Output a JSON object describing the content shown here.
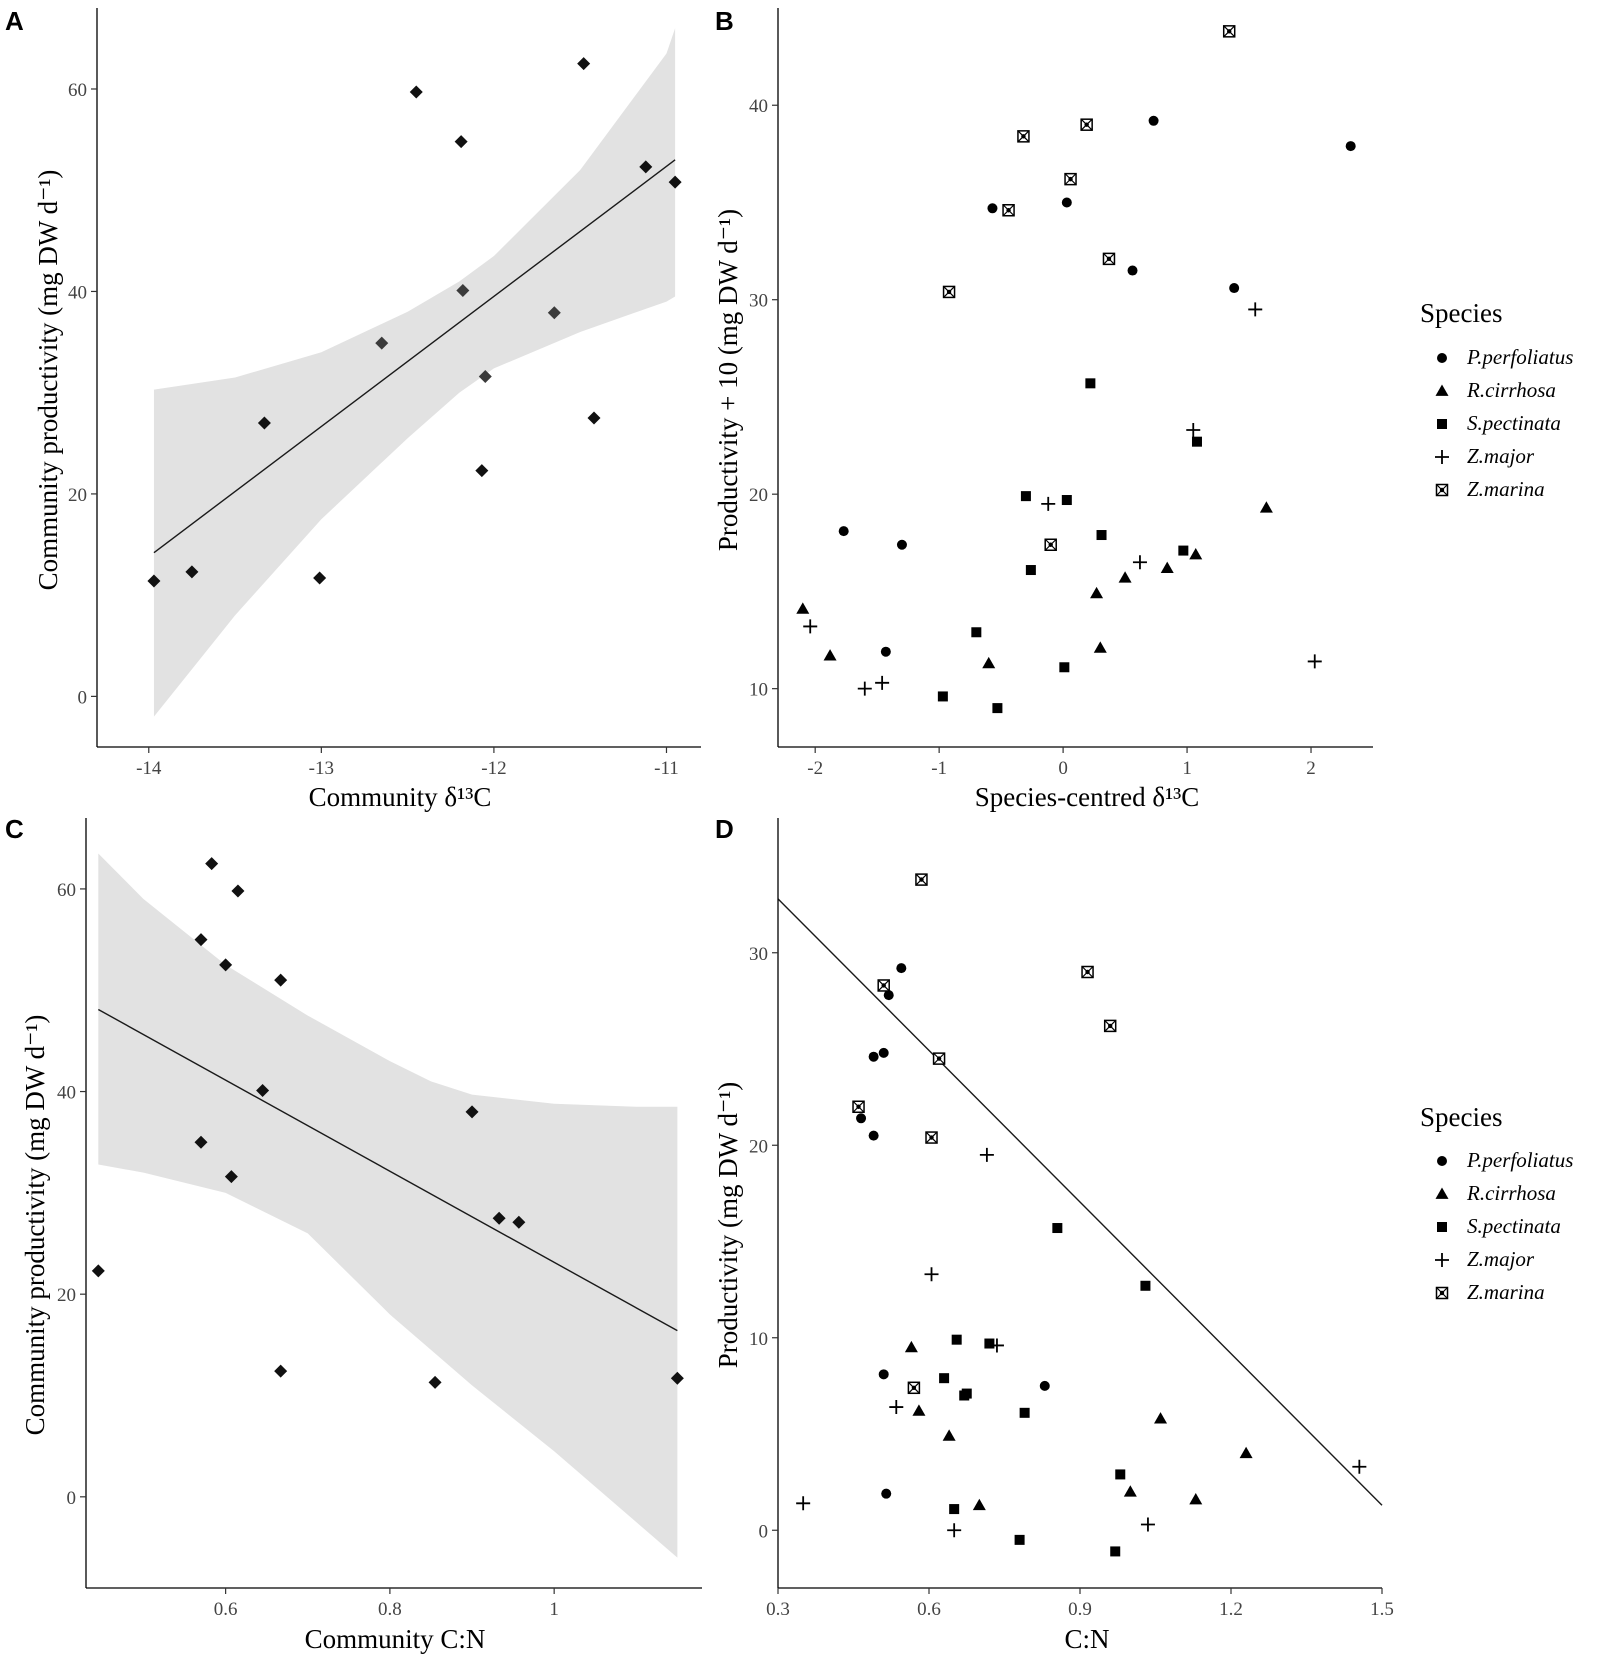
{
  "chart_data": [
    {
      "panel": "A",
      "type": "scatter",
      "xlabel": "Community δ¹³C",
      "ylabel": "Community productivity (mg DW d⁻¹)",
      "xlim": [
        -14.3,
        -10.8
      ],
      "ylim": [
        -5,
        68
      ],
      "xticks": [
        -14,
        -13,
        -12,
        -11
      ],
      "yticks": [
        0,
        20,
        40,
        60
      ],
      "points": [
        {
          "x": -13.97,
          "y": 11.4
        },
        {
          "x": -13.75,
          "y": 12.3
        },
        {
          "x": -13.33,
          "y": 27.0
        },
        {
          "x": -13.01,
          "y": 11.7
        },
        {
          "x": -12.65,
          "y": 34.9
        },
        {
          "x": -12.45,
          "y": 59.7
        },
        {
          "x": -12.19,
          "y": 54.8
        },
        {
          "x": -12.18,
          "y": 40.1
        },
        {
          "x": -12.05,
          "y": 31.6
        },
        {
          "x": -12.07,
          "y": 22.3
        },
        {
          "x": -11.65,
          "y": 37.9
        },
        {
          "x": -11.48,
          "y": 62.5
        },
        {
          "x": -11.42,
          "y": 27.5
        },
        {
          "x": -11.12,
          "y": 52.3
        },
        {
          "x": -10.95,
          "y": 50.8
        }
      ],
      "fit": {
        "x": [
          -13.97,
          -10.95
        ],
        "y": [
          14.2,
          53.0
        ]
      },
      "ribbon": {
        "x": [
          -13.97,
          -13.5,
          -13.0,
          -12.5,
          -12.2,
          -12.0,
          -11.5,
          -11.0,
          -10.95
        ],
        "lower": [
          -2.0,
          8.0,
          17.5,
          25.5,
          30.0,
          32.4,
          36.0,
          39.0,
          39.5
        ],
        "upper": [
          30.3,
          31.5,
          34.0,
          38.0,
          41.0,
          43.5,
          52.0,
          63.5,
          66.0
        ]
      }
    },
    {
      "panel": "B",
      "type": "scatter",
      "xlabel": "Species-centred δ¹³C",
      "ylabel": "Productivity + 10 (mg DW d⁻¹)",
      "xlim": [
        -2.3,
        2.5
      ],
      "ylim": [
        7,
        45
      ],
      "xticks": [
        -2,
        -1,
        0,
        1,
        2
      ],
      "yticks": [
        10,
        20,
        30,
        40
      ],
      "legend": {
        "title": "Species",
        "entries": [
          "P.perfoliatus",
          "R.cirrhosa",
          "S.pectinata",
          "Z.major",
          "Z.marina"
        ]
      },
      "series": [
        {
          "name": "P.perfoliatus",
          "shape": "circle",
          "x": [
            -1.77,
            -1.3,
            -1.43,
            -0.57,
            0.03,
            0.56,
            0.73,
            1.38,
            2.32
          ],
          "y": [
            18.1,
            17.4,
            11.9,
            34.7,
            35.0,
            31.5,
            39.2,
            30.6,
            37.9
          ]
        },
        {
          "name": "R.cirrhosa",
          "shape": "triangle",
          "x": [
            -2.1,
            -1.88,
            -0.6,
            0.27,
            0.3,
            0.5,
            0.84,
            1.07,
            1.64
          ],
          "y": [
            14.1,
            11.7,
            11.3,
            14.9,
            12.1,
            15.7,
            16.2,
            16.9,
            19.3
          ]
        },
        {
          "name": "S.pectinata",
          "shape": "square",
          "x": [
            -0.97,
            -0.53,
            -0.7,
            -0.3,
            -0.26,
            0.03,
            0.01,
            0.22,
            0.31,
            0.97,
            1.08
          ],
          "y": [
            9.6,
            9.0,
            12.9,
            19.9,
            16.1,
            19.7,
            11.1,
            25.7,
            17.9,
            17.1,
            22.7
          ]
        },
        {
          "name": "Z.major",
          "shape": "plus",
          "x": [
            -2.04,
            -1.6,
            -1.46,
            -0.12,
            0.62,
            1.05,
            1.55,
            2.03
          ],
          "y": [
            13.2,
            10.0,
            10.3,
            19.5,
            16.5,
            23.3,
            29.5,
            11.4
          ]
        },
        {
          "name": "Z.marina",
          "shape": "crossbox",
          "x": [
            -0.92,
            -0.44,
            -0.32,
            -0.1,
            0.06,
            0.19,
            0.37,
            1.34
          ],
          "y": [
            30.4,
            34.6,
            38.4,
            17.4,
            36.2,
            39.0,
            32.1,
            43.8
          ]
        }
      ]
    },
    {
      "panel": "C",
      "type": "scatter",
      "xlabel": "Community C:N",
      "ylabel": "Community productivity (mg DW d⁻¹)",
      "xlim": [
        0.43,
        1.18
      ],
      "ylim": [
        -9,
        67
      ],
      "xticks": [
        0.6,
        0.8,
        1.0
      ],
      "yticks": [
        0,
        20,
        40,
        60
      ],
      "points": [
        {
          "x": 0.445,
          "y": 22.3
        },
        {
          "x": 0.57,
          "y": 55.0
        },
        {
          "x": 0.57,
          "y": 35.0
        },
        {
          "x": 0.583,
          "y": 62.5
        },
        {
          "x": 0.6,
          "y": 52.5
        },
        {
          "x": 0.607,
          "y": 31.6
        },
        {
          "x": 0.615,
          "y": 59.8
        },
        {
          "x": 0.645,
          "y": 40.1
        },
        {
          "x": 0.667,
          "y": 51.0
        },
        {
          "x": 0.667,
          "y": 12.4
        },
        {
          "x": 0.855,
          "y": 11.3
        },
        {
          "x": 0.9,
          "y": 38.0
        },
        {
          "x": 0.933,
          "y": 27.5
        },
        {
          "x": 0.957,
          "y": 27.1
        },
        {
          "x": 1.15,
          "y": 11.7
        }
      ],
      "fit": {
        "x": [
          0.445,
          1.15
        ],
        "y": [
          48.1,
          16.4
        ]
      },
      "ribbon": {
        "x": [
          0.445,
          0.5,
          0.6,
          0.7,
          0.8,
          0.85,
          0.9,
          1.0,
          1.1,
          1.15
        ],
        "lower": [
          32.8,
          32.0,
          30.0,
          26.0,
          18.0,
          14.5,
          11.0,
          4.5,
          -2.5,
          -6.0
        ],
        "upper": [
          63.5,
          59.0,
          52.5,
          47.5,
          43.0,
          41.0,
          39.7,
          38.8,
          38.5,
          38.5
        ]
      }
    },
    {
      "panel": "D",
      "type": "scatter",
      "xlabel": "C:N",
      "ylabel": "Productivity (mg DW d⁻¹)",
      "xlim": [
        0.3,
        1.5
      ],
      "ylim": [
        -3,
        37
      ],
      "xticks": [
        0.3,
        0.6,
        0.9,
        1.2,
        1.5
      ],
      "xtick_labels": [
        "0.3",
        "0.6",
        "0.9",
        "1.2",
        "1.5"
      ],
      "yticks": [
        0,
        10,
        20,
        30
      ],
      "legend": {
        "title": "Species",
        "entries": [
          "P.perfoliatus",
          "R.cirrhosa",
          "S.pectinata",
          "Z.major",
          "Z.marina"
        ]
      },
      "series": [
        {
          "name": "P.perfoliatus",
          "shape": "circle",
          "x": [
            0.465,
            0.49,
            0.49,
            0.51,
            0.51,
            0.515,
            0.52,
            0.545,
            0.83
          ],
          "y": [
            21.4,
            24.6,
            20.5,
            24.8,
            8.1,
            1.9,
            27.8,
            29.2,
            7.5
          ]
        },
        {
          "name": "R.cirrhosa",
          "shape": "triangle",
          "x": [
            0.565,
            0.58,
            0.64,
            0.7,
            1.0,
            1.06,
            1.13,
            1.23
          ],
          "y": [
            9.5,
            6.2,
            4.9,
            1.3,
            2.0,
            5.8,
            1.6,
            4.0
          ]
        },
        {
          "name": "S.pectinata",
          "shape": "square",
          "x": [
            0.63,
            0.65,
            0.655,
            0.67,
            0.675,
            0.72,
            0.78,
            0.79,
            0.855,
            0.97,
            0.98,
            1.03
          ],
          "y": [
            7.9,
            1.1,
            9.9,
            7.0,
            7.1,
            9.7,
            -0.5,
            6.1,
            15.7,
            -1.1,
            2.9,
            12.7
          ]
        },
        {
          "name": "Z.major",
          "shape": "plus",
          "x": [
            0.35,
            0.535,
            0.605,
            0.65,
            0.715,
            0.735,
            1.035,
            1.455
          ],
          "y": [
            1.4,
            6.4,
            13.3,
            0.0,
            19.5,
            9.6,
            0.3,
            3.3
          ]
        },
        {
          "name": "Z.marina",
          "shape": "crossbox",
          "x": [
            0.46,
            0.57,
            0.51,
            0.585,
            0.605,
            0.62,
            0.915,
            0.96
          ],
          "y": [
            22.0,
            7.4,
            28.3,
            33.8,
            20.4,
            24.5,
            29.0,
            26.2
          ]
        }
      ],
      "fit": {
        "x": [
          0.3,
          1.5
        ],
        "y": [
          32.8,
          1.3
        ]
      }
    }
  ]
}
